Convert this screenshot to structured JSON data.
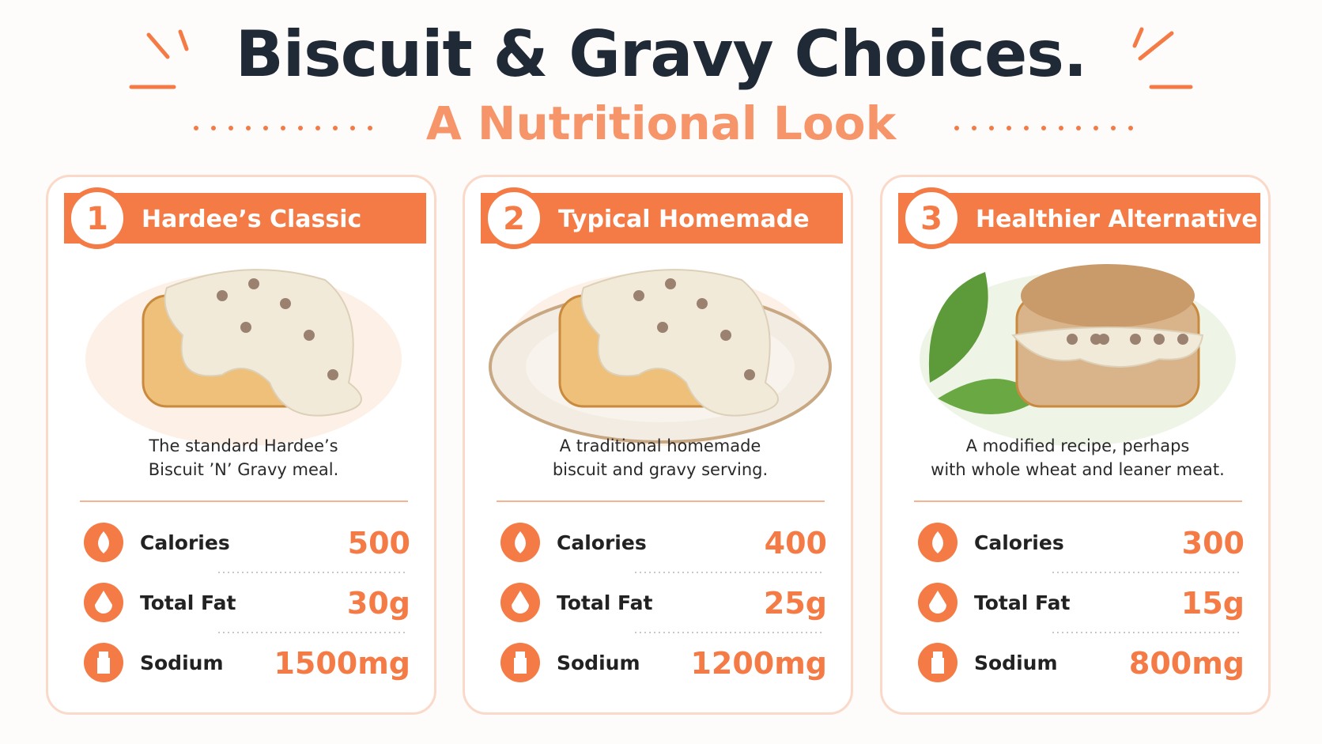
{
  "header": {
    "title": "Biscuit & Gravy Choices.",
    "subtitle": "A Nutritional Look"
  },
  "cards": [
    {
      "number": "1",
      "name": "Hardee’s Classic",
      "description": [
        "The standard Hardee’s",
        "Biscuit ’N’ Gravy meal."
      ],
      "nutrients": [
        {
          "label": "Calories",
          "value": "500"
        },
        {
          "label": "Total Fat",
          "value": "30g"
        },
        {
          "label": "Sodium",
          "value": "1500mg"
        }
      ]
    },
    {
      "number": "2",
      "name": "Typical Homemade",
      "description": [
        "A traditional homemade",
        "biscuit and gravy serving."
      ],
      "nutrients": [
        {
          "label": "Calories",
          "value": "400"
        },
        {
          "label": "Total Fat",
          "value": "25g"
        },
        {
          "label": "Sodium",
          "value": "1200mg"
        }
      ]
    },
    {
      "number": "3",
      "name": "Healthier Alternative",
      "description": [
        "A modified recipe, perhaps",
        "with whole wheat and leaner meat."
      ],
      "nutrients": [
        {
          "label": "Calories",
          "value": "300"
        },
        {
          "label": "Total Fat",
          "value": "15g"
        },
        {
          "label": "Sodium",
          "value": "800mg"
        }
      ]
    }
  ]
}
